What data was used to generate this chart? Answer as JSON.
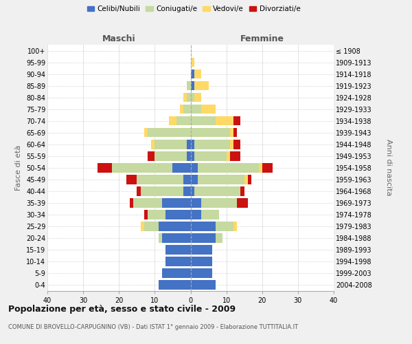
{
  "age_groups": [
    "0-4",
    "5-9",
    "10-14",
    "15-19",
    "20-24",
    "25-29",
    "30-34",
    "35-39",
    "40-44",
    "45-49",
    "50-54",
    "55-59",
    "60-64",
    "65-69",
    "70-74",
    "75-79",
    "80-84",
    "85-89",
    "90-94",
    "95-99",
    "100+"
  ],
  "birth_years": [
    "2004-2008",
    "1999-2003",
    "1994-1998",
    "1989-1993",
    "1984-1988",
    "1979-1983",
    "1974-1978",
    "1969-1973",
    "1964-1968",
    "1959-1963",
    "1954-1958",
    "1949-1953",
    "1944-1948",
    "1939-1943",
    "1934-1938",
    "1929-1933",
    "1924-1928",
    "1919-1923",
    "1914-1918",
    "1909-1913",
    "≤ 1908"
  ],
  "maschi": {
    "celibi": [
      9,
      8,
      7,
      7,
      8,
      9,
      7,
      8,
      2,
      2,
      5,
      1,
      1,
      0,
      0,
      0,
      0,
      0,
      0,
      0,
      0
    ],
    "coniugati": [
      0,
      0,
      0,
      0,
      1,
      4,
      5,
      8,
      12,
      13,
      17,
      9,
      9,
      12,
      4,
      2,
      1,
      1,
      0,
      0,
      0
    ],
    "vedovi": [
      0,
      0,
      0,
      0,
      0,
      1,
      0,
      0,
      0,
      0,
      0,
      0,
      1,
      1,
      2,
      1,
      1,
      0,
      0,
      0,
      0
    ],
    "divorziati": [
      0,
      0,
      0,
      0,
      0,
      0,
      1,
      1,
      1,
      3,
      4,
      2,
      0,
      0,
      0,
      0,
      0,
      0,
      0,
      0,
      0
    ]
  },
  "femmine": {
    "nubili": [
      7,
      6,
      6,
      6,
      7,
      7,
      3,
      3,
      1,
      2,
      2,
      1,
      1,
      0,
      0,
      0,
      0,
      1,
      1,
      0,
      0
    ],
    "coniugate": [
      0,
      0,
      0,
      0,
      2,
      5,
      5,
      10,
      13,
      13,
      17,
      9,
      10,
      11,
      7,
      3,
      1,
      0,
      0,
      0,
      0
    ],
    "vedove": [
      0,
      0,
      0,
      0,
      0,
      1,
      0,
      0,
      0,
      1,
      1,
      1,
      1,
      1,
      5,
      4,
      2,
      4,
      2,
      1,
      0
    ],
    "divorziate": [
      0,
      0,
      0,
      0,
      0,
      0,
      0,
      3,
      1,
      1,
      3,
      3,
      2,
      1,
      2,
      0,
      0,
      0,
      0,
      0,
      0
    ]
  },
  "colors": {
    "celibi": "#4472c4",
    "coniugati": "#c5d9a0",
    "vedovi": "#ffd966",
    "divorziati": "#cc1111"
  },
  "xlim": 40,
  "title": "Popolazione per età, sesso e stato civile - 2009",
  "subtitle": "COMUNE DI BROVELLO-CARPUGNINO (VB) - Dati ISTAT 1° gennaio 2009 - Elaborazione TUTTITALIA.IT",
  "xlabel_left": "Maschi",
  "xlabel_right": "Femmine",
  "ylabel_left": "Fasce di età",
  "ylabel_right": "Anni di nascita",
  "legend_labels": [
    "Celibi/Nubili",
    "Coniugati/e",
    "Vedovi/e",
    "Divorziati/e"
  ],
  "bg_color": "#f0f0f0",
  "plot_bg": "#ffffff",
  "grid_color": "#cccccc"
}
